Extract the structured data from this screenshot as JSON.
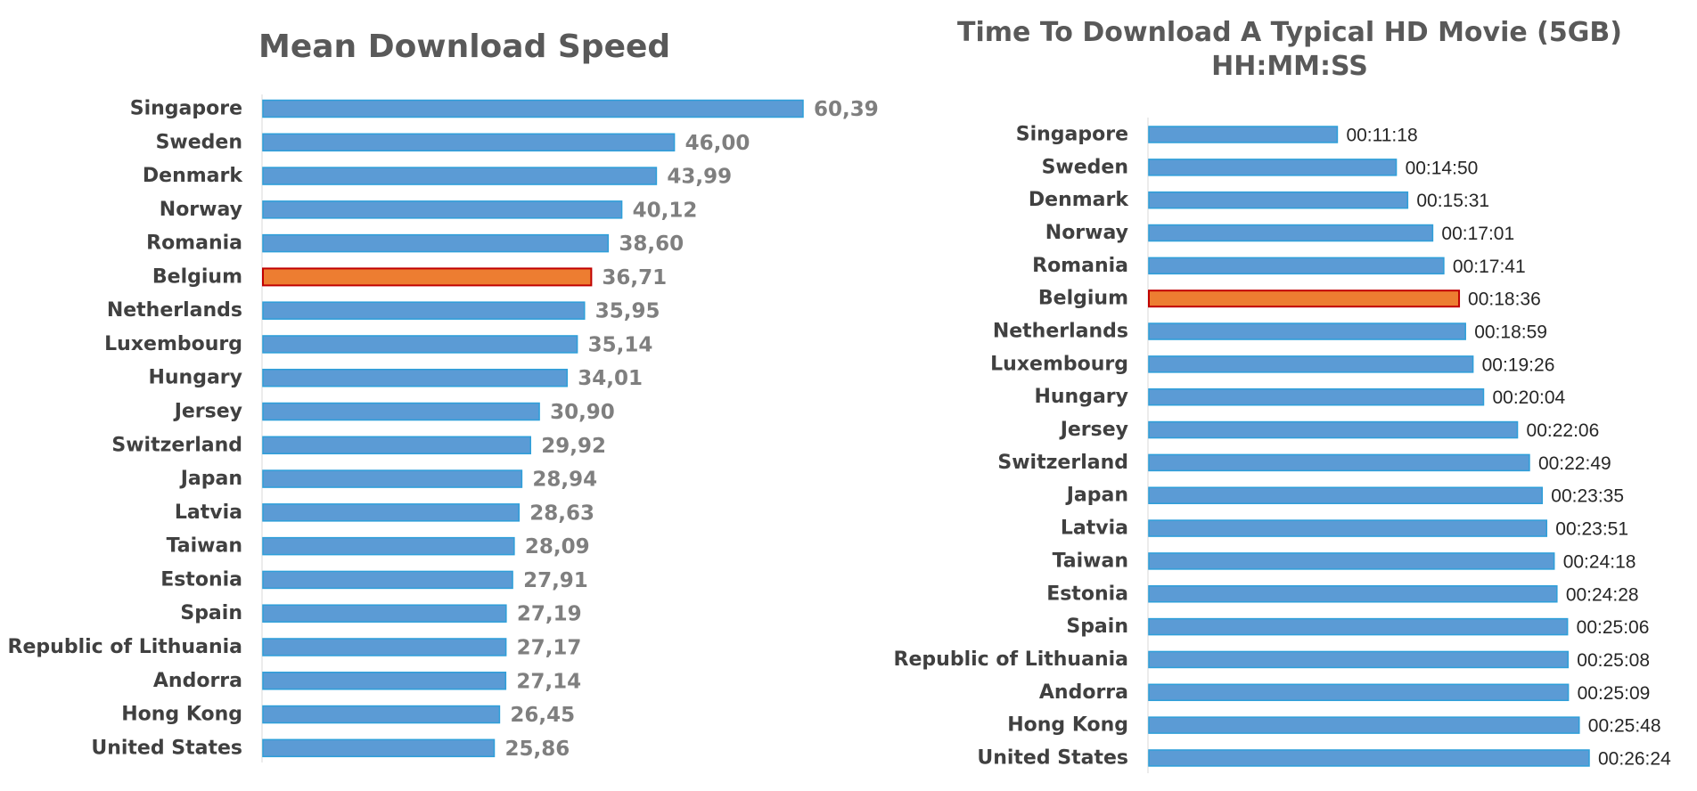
{
  "chart_data": [
    {
      "type": "bar",
      "orientation": "horizontal",
      "title": "Mean Download Speed",
      "categories": [
        "Singapore",
        "Sweden",
        "Denmark",
        "Norway",
        "Romania",
        "Belgium",
        "Netherlands",
        "Luxembourg",
        "Hungary",
        "Jersey",
        "Switzerland",
        "Japan",
        "Latvia",
        "Taiwan",
        "Estonia",
        "Spain",
        "Republic of Lithuania",
        "Andorra",
        "Hong Kong",
        "United States"
      ],
      "values": [
        60.39,
        46.0,
        43.99,
        40.12,
        38.6,
        36.71,
        35.95,
        35.14,
        34.01,
        30.9,
        29.92,
        28.94,
        28.63,
        28.09,
        27.91,
        27.19,
        27.17,
        27.14,
        26.45,
        25.86
      ],
      "labels": [
        "60,39",
        "46,00",
        "43,99",
        "40,12",
        "38,60",
        "36,71",
        "35,95",
        "35,14",
        "34,01",
        "30,90",
        "29,92",
        "28,94",
        "28,63",
        "28,09",
        "27,91",
        "27,19",
        "27,17",
        "27,14",
        "26,45",
        "25,86"
      ],
      "highlight": "Belgium",
      "colors": {
        "bar": "#5b9bd5",
        "bar_border": "#2e9fd9",
        "highlight": "#ed7d31",
        "highlight_border": "#c00000"
      },
      "xlim": [
        0,
        60.39
      ],
      "grid": false,
      "legend": "none"
    },
    {
      "type": "bar",
      "orientation": "horizontal",
      "title": "Time To Download A Typical HD Movie (5GB)",
      "subtitle": "HH:MM:SS",
      "categories": [
        "Singapore",
        "Sweden",
        "Denmark",
        "Norway",
        "Romania",
        "Belgium",
        "Netherlands",
        "Luxembourg",
        "Hungary",
        "Jersey",
        "Switzerland",
        "Japan",
        "Latvia",
        "Taiwan",
        "Estonia",
        "Spain",
        "Republic of Lithuania",
        "Andorra",
        "Hong Kong",
        "United States"
      ],
      "values": [
        "00:11:18",
        "00:14:50",
        "00:15:31",
        "00:17:01",
        "00:17:41",
        "00:18:36",
        "00:18:59",
        "00:19:26",
        "00:20:04",
        "00:22:06",
        "00:22:49",
        "00:23:35",
        "00:23:51",
        "00:24:18",
        "00:24:28",
        "00:25:06",
        "00:25:08",
        "00:25:09",
        "00:25:48",
        "00:26:24"
      ],
      "highlight": "Belgium",
      "colors": {
        "bar": "#5b9bd5",
        "bar_border": "#2e9fd9",
        "highlight": "#ed7d31",
        "highlight_border": "#c00000"
      },
      "xlim": [
        "00:00:00",
        "00:26:24"
      ],
      "grid": false,
      "legend": "none"
    }
  ]
}
